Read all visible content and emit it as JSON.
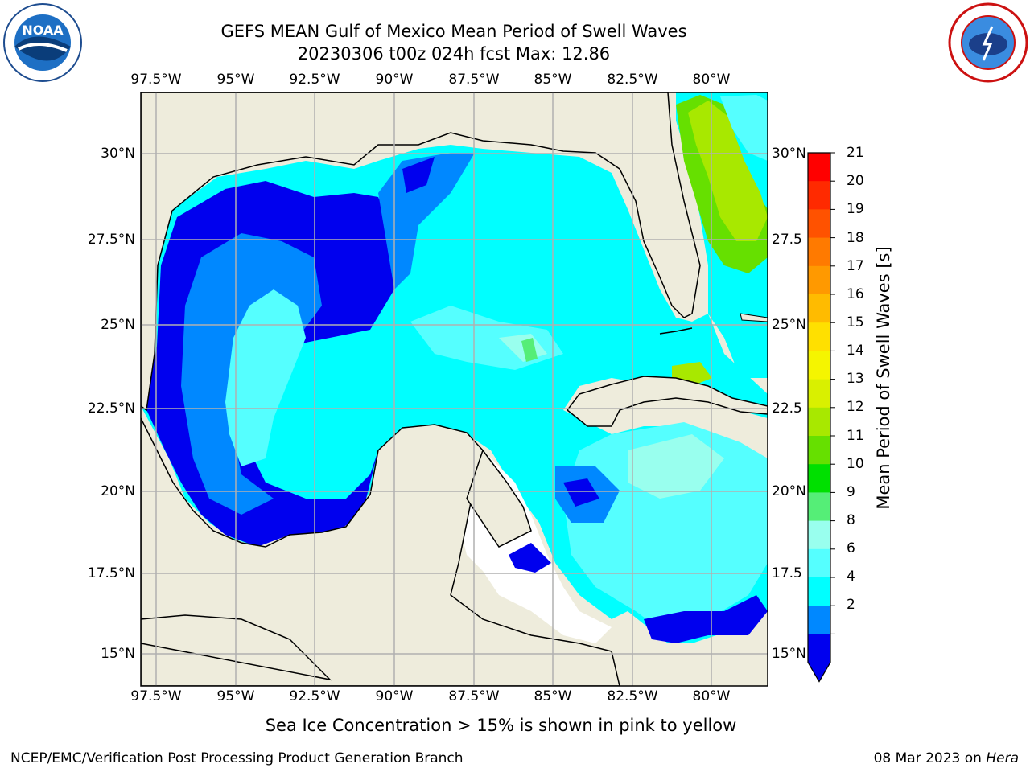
{
  "header": {
    "title_line1": "GEFS MEAN Gulf of Mexico Mean Period of Swell Waves",
    "title_line2": "20230306 t00z 024h fcst   Max: 12.86"
  },
  "logos": {
    "noaa_left_text": "NOAA",
    "noaa_ring_text": "NATIONAL OCEANIC AND ATMOSPHERIC ADMINISTRATION · U.S. DEPARTMENT OF COMMERCE",
    "nws_ring_text": "NATIONAL WEATHER SERVICE"
  },
  "map": {
    "lon_ticks": [
      "97.5°W",
      "95°W",
      "92.5°W",
      "90°W",
      "87.5°W",
      "85°W",
      "82.5°W",
      "80°W"
    ],
    "lat_ticks_left": [
      "30°N",
      "27.5°N",
      "25°N",
      "22.5°N",
      "20°N",
      "17.5°N",
      "15°N"
    ],
    "lat_ticks_right": [
      "30°N",
      "27.5",
      "25°N",
      "22.5",
      "20°N",
      "17.5",
      "15°N"
    ],
    "land_color": "#eeecdc",
    "grid_color": "#b0b0b0"
  },
  "colorbar": {
    "label": "Mean Period of Swell Waves [s]",
    "ticks": [
      "21",
      "20",
      "19",
      "18",
      "17",
      "16",
      "15",
      "14",
      "13",
      "12",
      "11",
      "10",
      "9",
      "8",
      "6",
      "4",
      "2"
    ],
    "colors": [
      "#ff0000",
      "#ff2a00",
      "#ff5200",
      "#ff7a00",
      "#ff9900",
      "#ffbb00",
      "#ffe000",
      "#f5f500",
      "#d9f000",
      "#a8e800",
      "#66e000",
      "#00e000",
      "#55ee77",
      "#99ffee",
      "#55ffff",
      "#00ffff",
      "#0088ff",
      "#0000ee"
    ]
  },
  "note": "Sea Ice Concentration > 15% is shown in pink to yellow",
  "footer": {
    "left": "NCEP/EMC/Verification Post Processing Product Generation Branch",
    "right_date": "08 Mar 2023 on ",
    "right_host": "Hera"
  }
}
